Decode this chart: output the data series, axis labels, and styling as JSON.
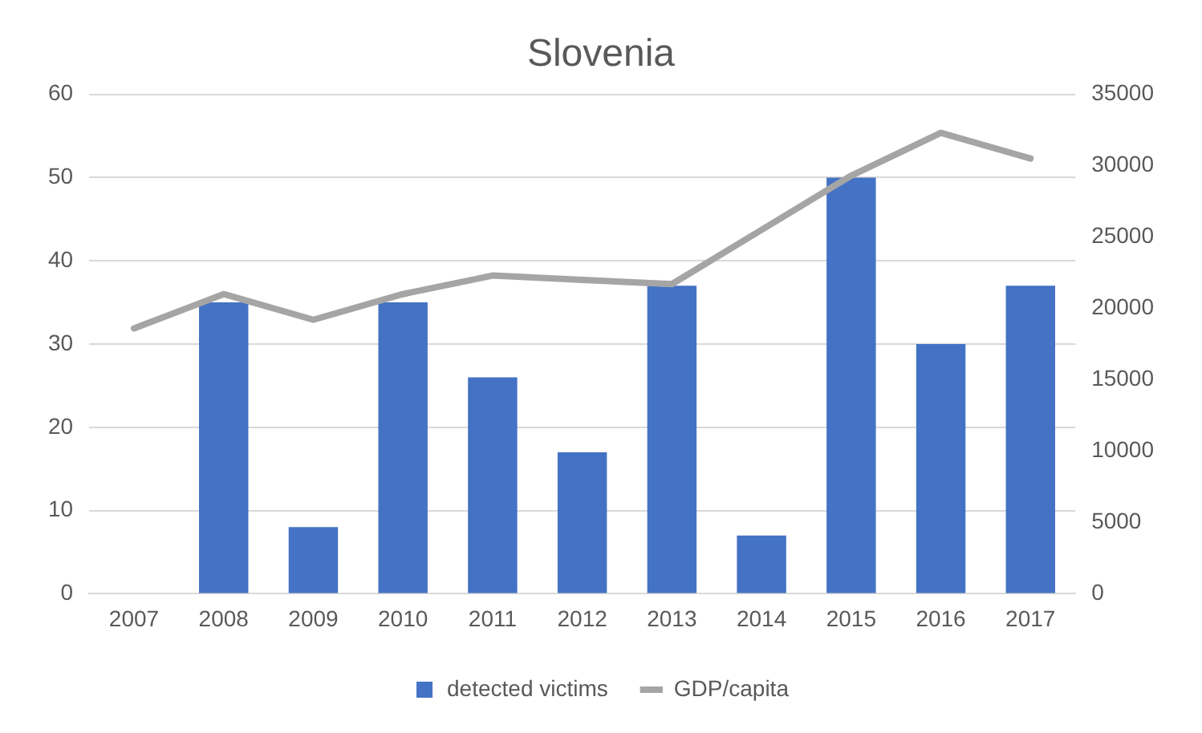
{
  "chart_data": {
    "type": "bar",
    "title": "Slovenia",
    "categories": [
      "2007",
      "2008",
      "2009",
      "2010",
      "2011",
      "2012",
      "2013",
      "2014",
      "2015",
      "2016",
      "2017"
    ],
    "series": [
      {
        "name": "detected victims",
        "color": "#4472c4",
        "values": [
          null,
          35,
          8,
          35,
          26,
          17,
          37,
          7,
          50,
          30,
          37
        ]
      },
      {
        "name": "GDP/capita",
        "type": "line",
        "axis": "y2",
        "color": "#a5a5a5",
        "values": [
          18600,
          21000,
          19200,
          21000,
          22300,
          22000,
          21700,
          25500,
          29300,
          32300,
          30500
        ]
      }
    ],
    "ylim": [
      0,
      60
    ],
    "yticks": [
      0,
      10,
      20,
      30,
      40,
      50,
      60
    ],
    "y2lim": [
      0,
      35000
    ],
    "y2ticks": [
      0,
      5000,
      10000,
      15000,
      20000,
      25000,
      30000,
      35000
    ],
    "grid": "y",
    "legend": "bottom",
    "marker": "none",
    "line_style": "solid"
  }
}
